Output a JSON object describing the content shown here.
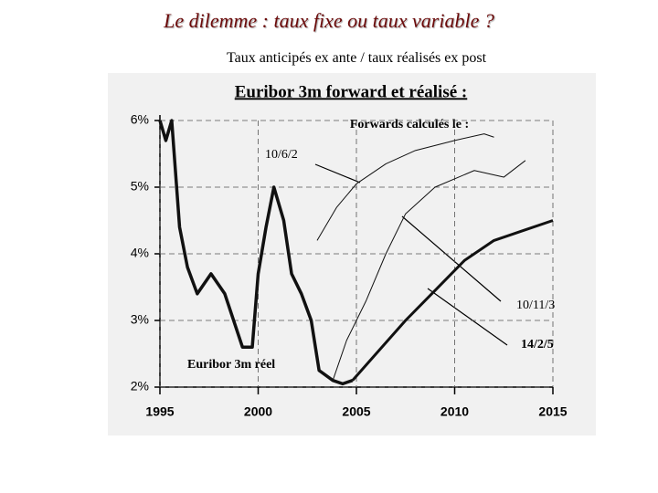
{
  "page": {
    "title": "Le dilemme : taux fixe ou taux variable ?",
    "subtitle": "Taux anticipés ex ante / taux réalisés ex post"
  },
  "chart_data": {
    "type": "line",
    "title": "Euribor 3m forward et réalisé :",
    "annotation": "Forwards calculés le :",
    "xlim": [
      1995,
      2015
    ],
    "xticks": [
      1995,
      2000,
      2005,
      2010,
      2015
    ],
    "ylim": [
      2,
      6
    ],
    "yticks": [
      {
        "value": 2,
        "label": "2%"
      },
      {
        "value": 3,
        "label": "3%"
      },
      {
        "value": 4,
        "label": "4%"
      },
      {
        "value": 5,
        "label": "5%"
      },
      {
        "value": 6,
        "label": "6%"
      }
    ],
    "grid": true,
    "series": [
      {
        "name": "Euribor 3m réel",
        "color": "#111111",
        "x": [
          1995.0,
          1995.3,
          1995.6,
          1996.0,
          1996.4,
          1996.9,
          1997.6,
          1998.3,
          1999.2,
          1999.7,
          2000.0,
          2000.4,
          2000.8,
          2001.3,
          2001.7,
          2002.2,
          2002.7,
          2003.1,
          2003.8,
          2004.3,
          2004.8
        ],
        "values": [
          6.0,
          5.7,
          6.0,
          4.4,
          3.8,
          3.4,
          3.7,
          3.4,
          2.6,
          2.6,
          3.7,
          4.4,
          5.0,
          4.5,
          3.7,
          3.4,
          3.0,
          2.25,
          2.1,
          2.05,
          2.1
        ]
      },
      {
        "name": "10/6/2",
        "color": "#111111",
        "x": [
          2003.0,
          2004.0,
          2005.0,
          2006.5,
          2008.0,
          2010.0,
          2011.5,
          2012.0
        ],
        "values": [
          4.2,
          4.7,
          5.05,
          5.35,
          5.55,
          5.7,
          5.8,
          5.75
        ]
      },
      {
        "name": "10/11/3",
        "color": "#111111",
        "x": [
          2003.8,
          2004.5,
          2005.5,
          2006.5,
          2007.5,
          2009.0,
          2011.0,
          2012.5,
          2013.6
        ],
        "values": [
          2.1,
          2.7,
          3.3,
          4.0,
          4.6,
          5.0,
          5.25,
          5.15,
          5.4
        ]
      },
      {
        "name": "14/2/5",
        "color": "#111111",
        "x": [
          2004.8,
          2006.0,
          2007.5,
          2009.0,
          2010.5,
          2012.0,
          2013.5,
          2015.0
        ],
        "values": [
          2.1,
          2.5,
          3.0,
          3.45,
          3.9,
          4.2,
          4.35,
          4.5
        ]
      }
    ]
  }
}
